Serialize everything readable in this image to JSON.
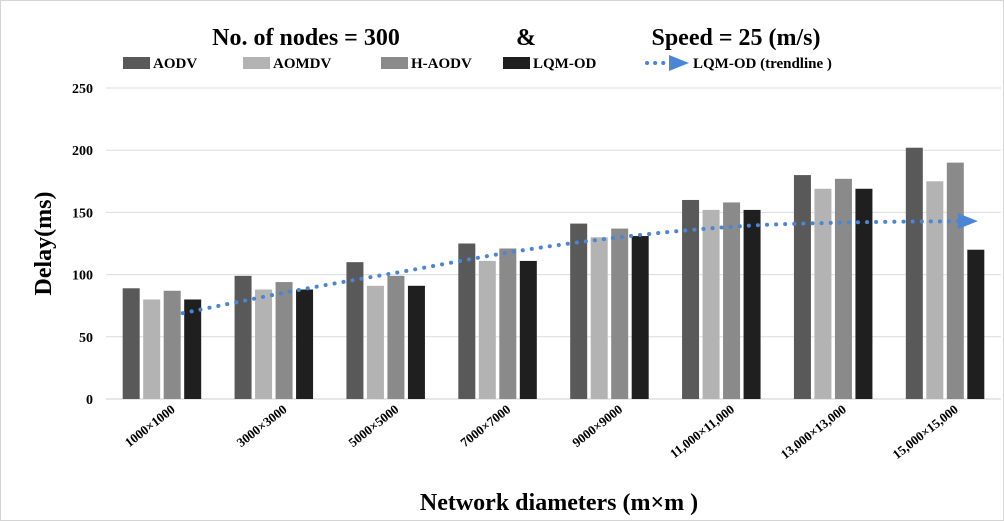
{
  "chart_data": {
    "type": "bar",
    "title_parts": [
      "No. of nodes = 300",
      "&",
      "Speed = 25 (m/s)"
    ],
    "xlabel": "Network diameters (m×m )",
    "ylabel": "Delay(ms)",
    "ylim": [
      0,
      250
    ],
    "yticks": [
      0,
      50,
      100,
      150,
      200,
      250
    ],
    "grid": true,
    "legend_position": "top",
    "categories": [
      "1000×1000",
      "3000×3000",
      "5000×5000",
      "7000×7000",
      "9000×9000",
      "11,000×11,000",
      "13,000×13,000",
      "15,000×15,000"
    ],
    "series": [
      {
        "name": "AODV",
        "color": "#595959",
        "values": [
          89,
          99,
          110,
          125,
          141,
          160,
          180,
          202
        ]
      },
      {
        "name": "AOMDV",
        "color": "#b3b3b3",
        "values": [
          80,
          88,
          91,
          111,
          130,
          152,
          169,
          175
        ]
      },
      {
        "name": "H-AODV",
        "color": "#8a8a8a",
        "values": [
          87,
          94,
          99,
          121,
          137,
          158,
          177,
          190
        ]
      },
      {
        "name": "LQM-OD",
        "color": "#1f1f1f",
        "values": [
          80,
          88,
          91,
          111,
          131,
          152,
          169,
          120
        ]
      }
    ],
    "trendline": {
      "name": "LQM-OD (trendline )",
      "color": "#4a86d4",
      "style": "dotted",
      "values": [
        69,
        87,
        103,
        119,
        131,
        139,
        142,
        143
      ]
    }
  }
}
